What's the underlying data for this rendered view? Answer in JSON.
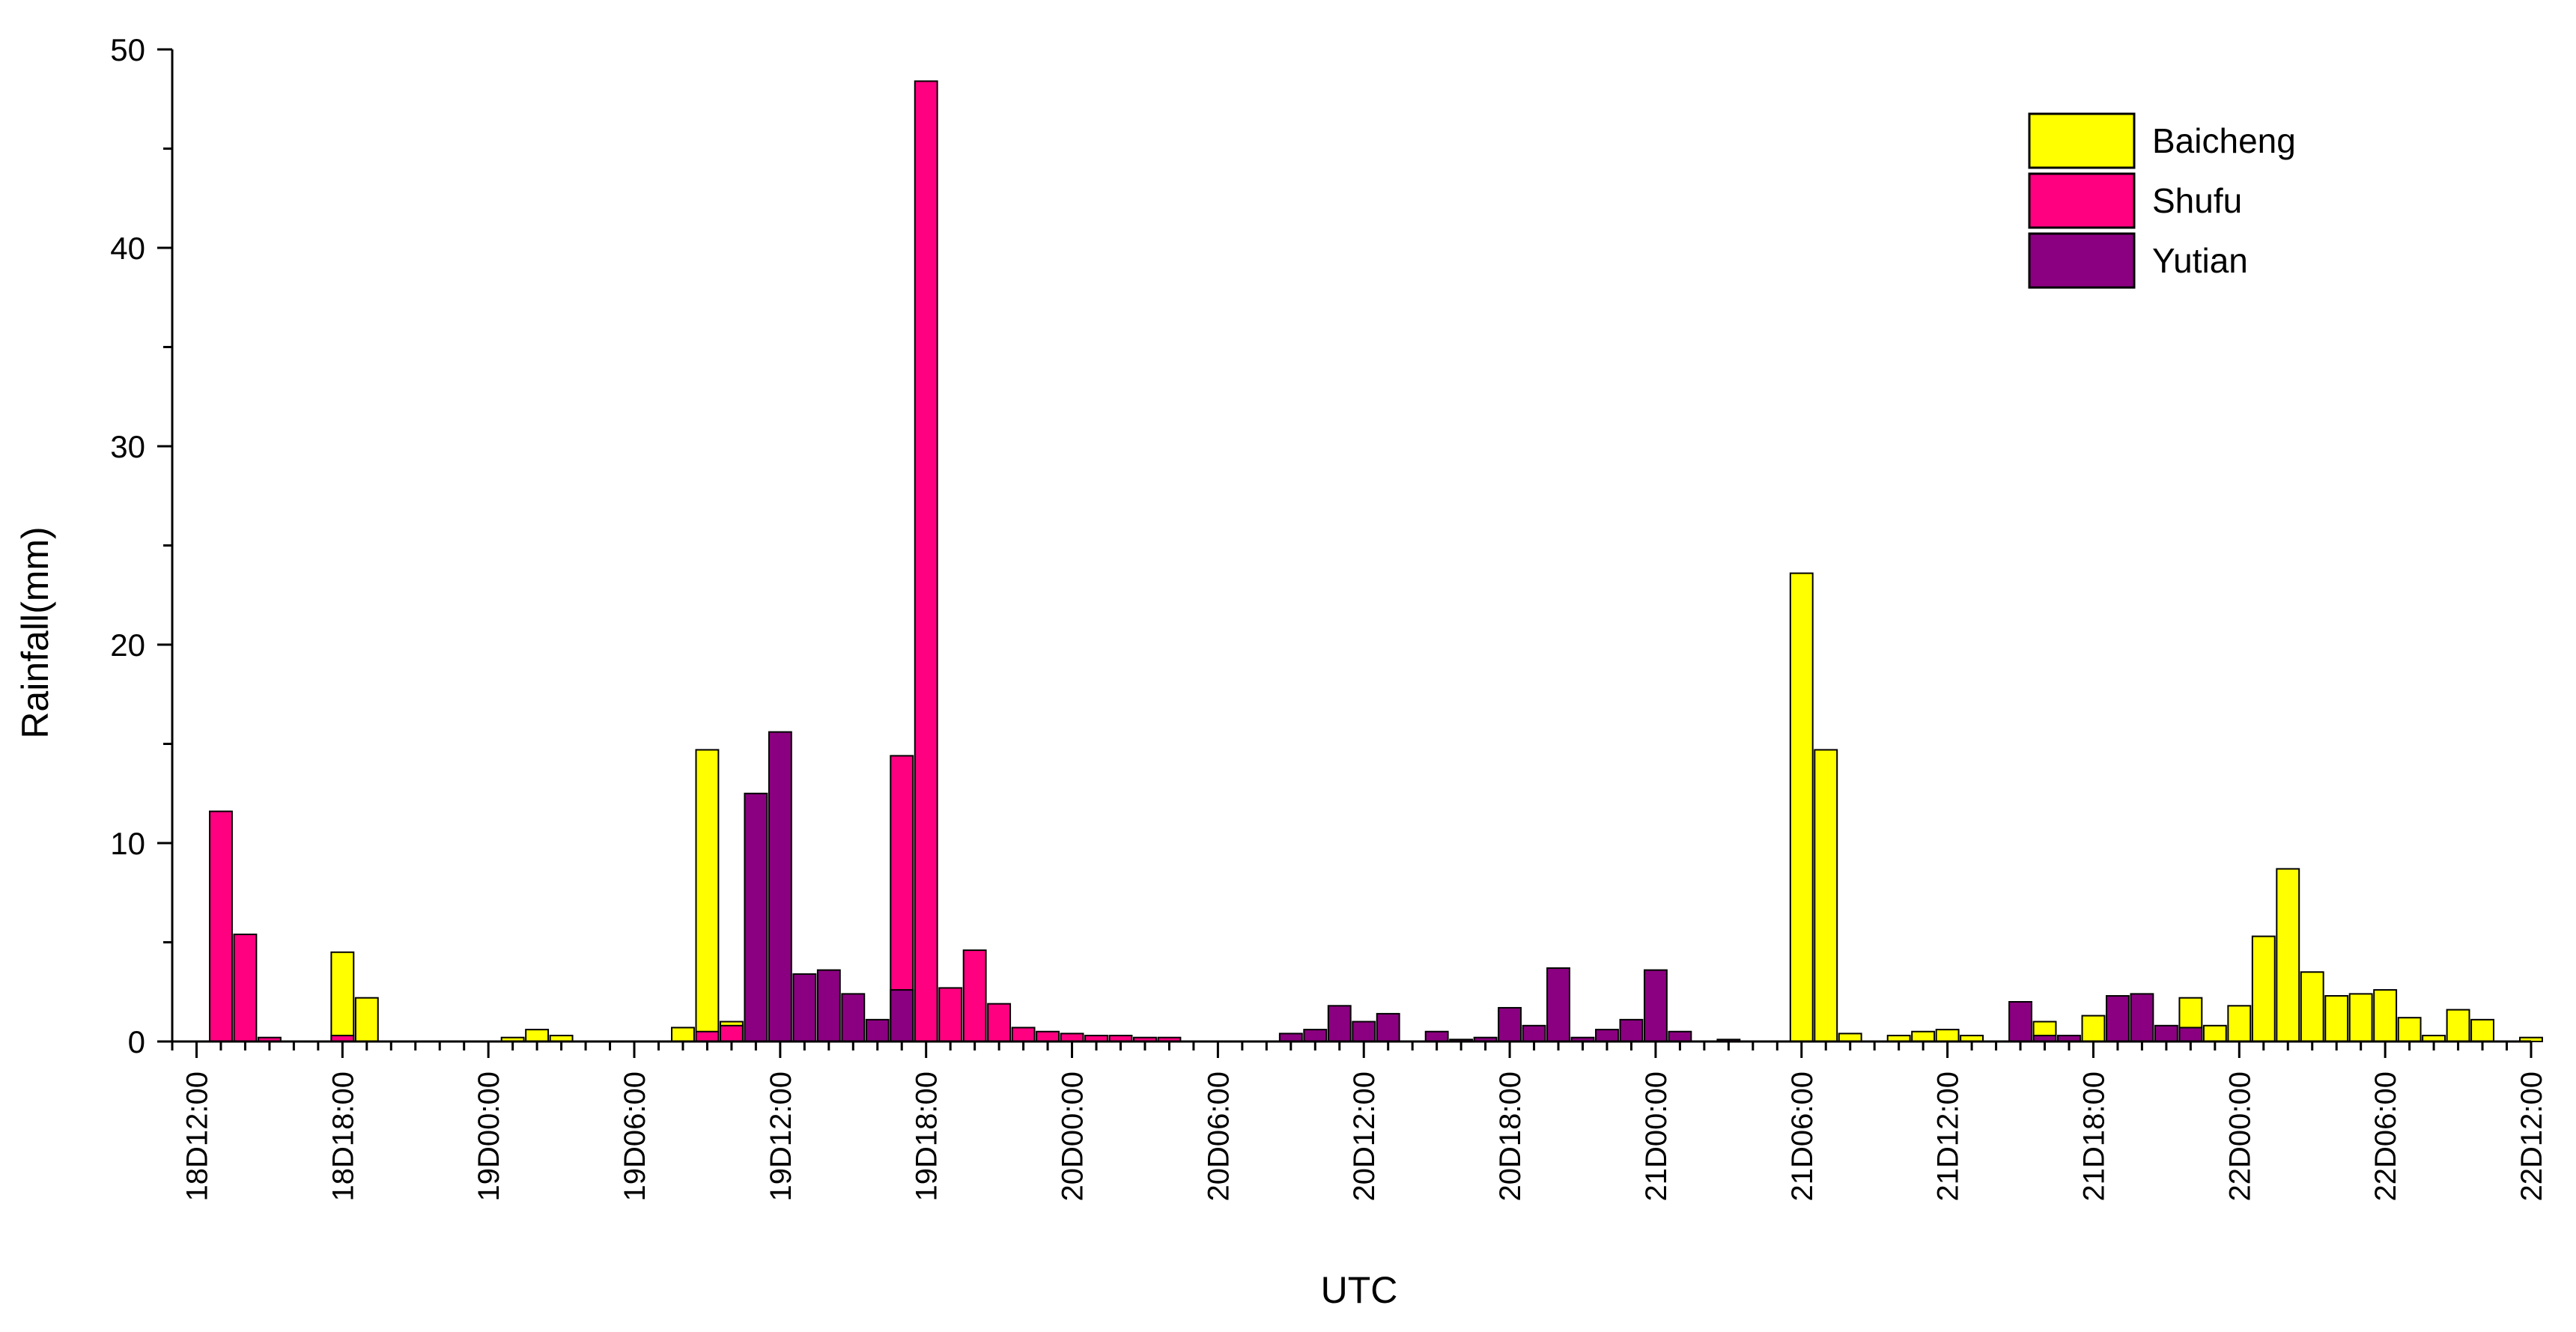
{
  "chart_data": {
    "type": "bar",
    "title": "",
    "xlabel": "UTC",
    "ylabel": "Rainfall(mm)",
    "ylim": [
      0,
      50
    ],
    "yticks": [
      "0",
      "10",
      "20",
      "30",
      "40",
      "50"
    ],
    "xlim": [
      "18D11:00",
      "22D12:00"
    ],
    "xticks": [
      "18D12:00",
      "18D18:00",
      "19D00:00",
      "19D06:00",
      "19D12:00",
      "19D18:00",
      "20D00:00",
      "20D06:00",
      "20D12:00",
      "20D18:00",
      "21D00:00",
      "21D06:00",
      "21D12:00",
      "21D18:00",
      "22D00:00",
      "22D06:00",
      "22D12:00"
    ],
    "x_unit": "hour",
    "grid": false,
    "legend_position": "top-right",
    "colors": {
      "Baicheng": "#ffff00",
      "Shufu": "#ff0080",
      "Yutian": "#8b0080"
    },
    "series": [
      {
        "name": "Baicheng",
        "times": [
          "18D18:00",
          "18D19:00",
          "19D01:00",
          "19D02:00",
          "19D03:00",
          "19D08:00",
          "19D09:00",
          "19D10:00",
          "21D06:00",
          "21D07:00",
          "21D08:00",
          "21D10:00",
          "21D11:00",
          "21D12:00",
          "21D13:00",
          "21D16:00",
          "21D18:00",
          "21D22:00",
          "21D23:00",
          "22D00:00",
          "22D01:00",
          "22D02:00",
          "22D03:00",
          "22D04:00",
          "22D05:00",
          "22D06:00",
          "22D07:00",
          "22D08:00",
          "22D09:00",
          "22D10:00",
          "22D12:00"
        ],
        "values": [
          4.5,
          2.2,
          0.2,
          0.6,
          0.3,
          0.7,
          14.7,
          1.0,
          23.6,
          14.7,
          0.4,
          0.3,
          0.5,
          0.6,
          0.3,
          1.0,
          1.3,
          2.2,
          0.8,
          1.8,
          5.3,
          8.7,
          3.5,
          2.3,
          2.4,
          2.6,
          1.2,
          0.3,
          1.6,
          1.1,
          0.2
        ]
      },
      {
        "name": "Shufu",
        "times": [
          "18D13:00",
          "18D14:00",
          "18D15:00",
          "18D18:00",
          "19D09:00",
          "19D10:00",
          "19D17:00",
          "19D18:00",
          "19D19:00",
          "19D20:00",
          "19D21:00",
          "19D22:00",
          "19D23:00",
          "20D00:00",
          "20D01:00",
          "20D02:00",
          "20D03:00",
          "20D04:00"
        ],
        "values": [
          11.6,
          5.4,
          0.2,
          0.3,
          0.5,
          0.8,
          14.4,
          48.4,
          2.7,
          4.6,
          1.9,
          0.7,
          0.5,
          0.4,
          0.3,
          0.3,
          0.2,
          0.2
        ]
      },
      {
        "name": "Yutian",
        "times": [
          "19D11:00",
          "19D12:00",
          "19D13:00",
          "19D14:00",
          "19D15:00",
          "19D16:00",
          "19D17:00",
          "20D09:00",
          "20D10:00",
          "20D11:00",
          "20D12:00",
          "20D13:00",
          "20D15:00",
          "20D16:00",
          "20D17:00",
          "20D18:00",
          "20D19:00",
          "20D20:00",
          "20D21:00",
          "20D22:00",
          "20D23:00",
          "21D00:00",
          "21D01:00",
          "21D03:00",
          "21D15:00",
          "21D16:00",
          "21D17:00",
          "21D19:00",
          "21D20:00",
          "21D21:00",
          "21D22:00"
        ],
        "values": [
          12.5,
          15.6,
          3.4,
          3.6,
          2.4,
          1.1,
          2.6,
          0.4,
          0.6,
          1.8,
          1.0,
          1.4,
          0.5,
          0.1,
          0.2,
          1.7,
          0.8,
          3.7,
          0.2,
          0.6,
          1.1,
          3.6,
          0.5,
          0.1,
          2.0,
          0.3,
          0.3,
          2.3,
          2.4,
          0.8,
          0.7
        ]
      }
    ]
  }
}
